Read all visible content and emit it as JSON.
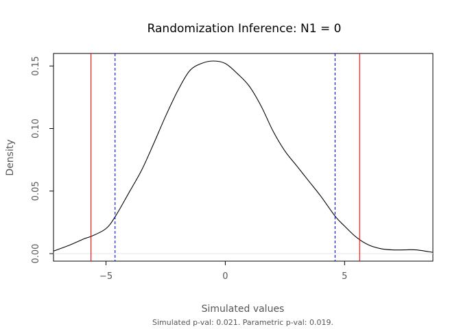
{
  "chart_data": {
    "type": "line",
    "title": "Randomization Inference: N1 = 0",
    "xlabel": "Simulated values",
    "ylabel": "Density",
    "caption": "Simulated p-val: 0.021. Parametric p-val: 0.019.",
    "xlim": [
      -7.2,
      8.7
    ],
    "ylim": [
      -0.006,
      0.16
    ],
    "x_ticks": [
      -5,
      0,
      5
    ],
    "x_tick_labels": [
      "−5",
      "0",
      "5"
    ],
    "y_ticks": [
      0.0,
      0.05,
      0.1,
      0.15
    ],
    "y_tick_labels": [
      "0.00",
      "0.05",
      "0.10",
      "0.15"
    ],
    "grid": false,
    "series": [
      {
        "color": "#000000",
        "x": [
          -7.2,
          -6.5,
          -5.9,
          -5.6,
          -5.0,
          -4.6,
          -4.0,
          -3.5,
          -3.0,
          -2.5,
          -2.0,
          -1.5,
          -1.0,
          -0.5,
          0.0,
          0.5,
          1.0,
          1.5,
          2.0,
          2.5,
          3.0,
          3.5,
          4.0,
          4.6,
          5.0,
          5.5,
          6.0,
          6.5,
          7.0,
          7.5,
          8.0,
          8.7
        ],
        "y": [
          0.002,
          0.007,
          0.012,
          0.014,
          0.02,
          0.03,
          0.05,
          0.067,
          0.088,
          0.11,
          0.13,
          0.146,
          0.152,
          0.154,
          0.152,
          0.144,
          0.134,
          0.118,
          0.098,
          0.082,
          0.07,
          0.058,
          0.046,
          0.03,
          0.022,
          0.013,
          0.007,
          0.004,
          0.003,
          0.003,
          0.003,
          0.001
        ]
      }
    ],
    "vlines": [
      {
        "x": -5.63,
        "color": "#ff0000",
        "style": "solid"
      },
      {
        "x": 5.63,
        "color": "#ff0000",
        "style": "solid"
      },
      {
        "x": -4.62,
        "color": "#0000ff",
        "style": "dashed"
      },
      {
        "x": 4.6,
        "color": "#0000ff",
        "style": "dashed"
      }
    ],
    "hline": {
      "y": 0,
      "color": "#e6e6e6"
    }
  }
}
